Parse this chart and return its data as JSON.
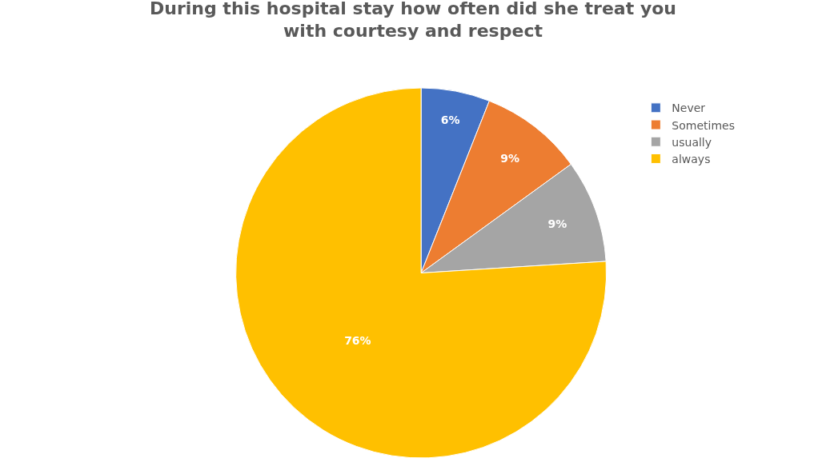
{
  "chart_data": {
    "type": "pie",
    "title": "During this hospital stay how often did she treat you with courtesy and respect",
    "categories": [
      "Never",
      "Sometimes",
      "usually",
      "always"
    ],
    "values": [
      6,
      9,
      9,
      76
    ],
    "colors": [
      "#4472c4",
      "#ed7d31",
      "#a5a5a5",
      "#ffc000"
    ],
    "value_labels": [
      "6%",
      "9%",
      "9%",
      "76%"
    ],
    "legend": "top right"
  }
}
